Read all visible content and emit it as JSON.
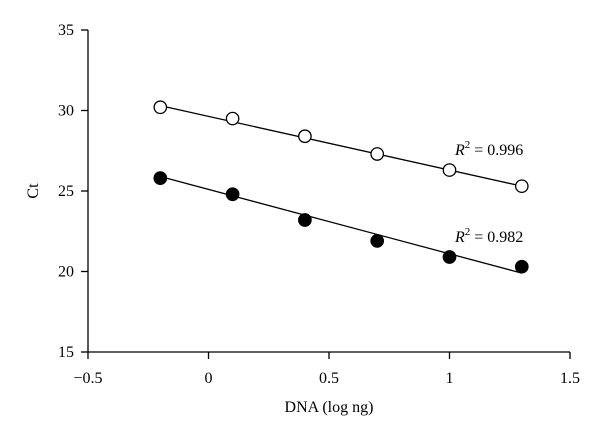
{
  "chart_data": {
    "type": "scatter",
    "title": "",
    "xlabel": "DNA (log ng)",
    "ylabel": "Ct",
    "xlim": [
      -0.5,
      1.5
    ],
    "ylim": [
      15,
      35
    ],
    "xticks": [
      -0.5,
      0,
      0.5,
      1,
      1.5
    ],
    "xtick_labels": [
      "−0.5",
      "0",
      "0.5",
      "1",
      "1.5"
    ],
    "yticks": [
      15,
      20,
      25,
      30,
      35
    ],
    "ytick_labels": [
      "15",
      "20",
      "25",
      "30",
      "35"
    ],
    "grid": false,
    "legend": "none",
    "series": [
      {
        "marker": "open-circle",
        "x": [
          -0.2,
          0.1,
          0.4,
          0.7,
          1.0,
          1.3
        ],
        "y": [
          30.2,
          29.5,
          28.4,
          27.3,
          26.3,
          25.3
        ],
        "fit": {
          "x": [
            -0.2,
            1.3
          ],
          "y": [
            30.3,
            25.3
          ]
        },
        "annotation": {
          "r_label": "R",
          "r_sup": "2",
          "r_value": " = 0.996"
        }
      },
      {
        "marker": "filled-circle",
        "x": [
          -0.2,
          0.1,
          0.4,
          0.7,
          1.0,
          1.3
        ],
        "y": [
          25.8,
          24.8,
          23.2,
          21.9,
          20.9,
          20.3
        ],
        "fit": {
          "x": [
            -0.2,
            1.3
          ],
          "y": [
            25.9,
            19.9
          ]
        },
        "annotation": {
          "r_label": "R",
          "r_sup": "2",
          "r_value": " = 0.982"
        }
      }
    ]
  }
}
